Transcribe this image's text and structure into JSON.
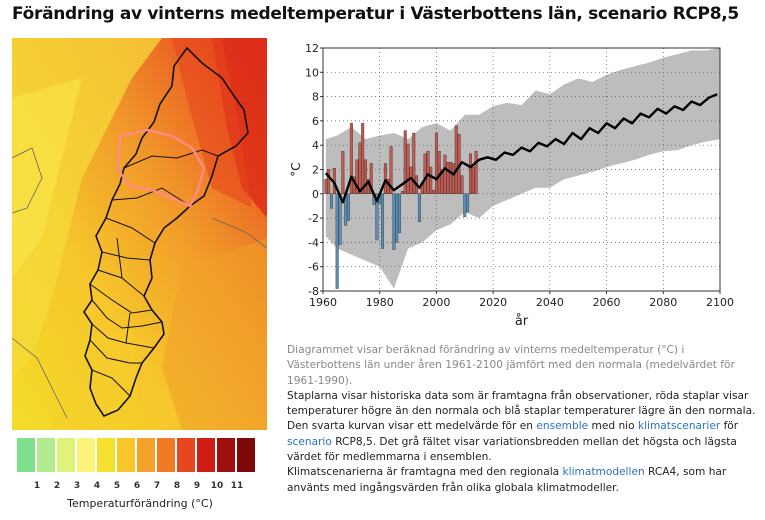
{
  "page": {
    "title": "Förändring av vinterns medeltemperatur i Västerbottens län, scenario RCP8,5"
  },
  "legend": {
    "label": "Temperaturförändring (°C)",
    "ticks": [
      "1",
      "2",
      "3",
      "4",
      "5",
      "6",
      "7",
      "8",
      "9",
      "10",
      "11"
    ],
    "colors": [
      "#7ee08a",
      "#b2eb8f",
      "#dff27a",
      "#fbf37a",
      "#f5e12d",
      "#f9c62a",
      "#f5a12a",
      "#ef7b24",
      "#e6471e",
      "#cf1d14",
      "#9e0f0d"
    ]
  },
  "description": {
    "p1": "Diagrammet visar beräknad förändring av vinterns medeltemperatur (°C) i Västerbottens län under åren 1961-2100 jämfört med den normala (medelvärdet för 1961-1990).",
    "p2": "Staplarna visar historiska data som är framtagna från observationer, röda staplar visar temperaturer högre än den normala och blå staplar temperaturer lägre än den normala.",
    "p3_a": "Den svarta kurvan visar ett medelvärde för en ",
    "p3_link1": "ensemble",
    "p3_b": " med nio ",
    "p3_link2": "klimatscenarier",
    "p3_c": " för ",
    "p3_link3": "scenario",
    "p3_d": " RCP8,5. Det grå fältet visar variationsbredden mellan det högsta och lägsta värdet för medlemmarna i ensemblen.",
    "p4_a": "Klimatscenarierna är framtagna med den regionala ",
    "p4_link": "klimatmodellen",
    "p4_b": " RCA4, som har använts med ingångsvärden från olika globala klimatmodeller."
  },
  "colors": {
    "bar_positive": "#c45a4e",
    "bar_negative": "#5b8fb8",
    "envelope": "#bdbdbd",
    "mean_line": "#000000",
    "link": "#2a72c6",
    "highlight_county": "#ff8a8a"
  },
  "chart_data": {
    "type": "bar",
    "xlabel": "år",
    "ylabel": "°C",
    "xlim": [
      1960,
      2100
    ],
    "ylim": [
      -8,
      12
    ],
    "xticks": [
      1960,
      1980,
      2000,
      2020,
      2040,
      2060,
      2080,
      2100
    ],
    "yticks": [
      -8,
      -6,
      -4,
      -2,
      0,
      2,
      4,
      6,
      8,
      10,
      12
    ],
    "grid": true,
    "series": [
      {
        "kind": "bar",
        "x": [
          1961,
          1962,
          1963,
          1964,
          1965,
          1966,
          1967,
          1968,
          1969,
          1970,
          1971,
          1972,
          1973,
          1974,
          1975,
          1976,
          1977,
          1978,
          1979,
          1980,
          1981,
          1982,
          1983,
          1984,
          1985,
          1986,
          1987,
          1988,
          1989,
          1990,
          1991,
          1992,
          1993,
          1994,
          1995,
          1996,
          1997,
          1998,
          1999,
          2000,
          2001,
          2002,
          2003,
          2004,
          2005,
          2006,
          2007,
          2008,
          2009,
          2010,
          2011,
          2012,
          2013,
          2014
        ],
        "values": [
          1.2,
          2.0,
          -1.2,
          2.1,
          -7.8,
          -4.2,
          3.5,
          -2.6,
          -2.2,
          5.8,
          1.4,
          2.8,
          4.2,
          5.8,
          2.8,
          1.2,
          2.5,
          -0.9,
          -3.8,
          -0.8,
          -4.5,
          2.5,
          1.2,
          3.9,
          -4.6,
          -4.0,
          -3.2,
          0.2,
          5.2,
          4.1,
          2.2,
          5.0,
          1.5,
          -2.3,
          0.9,
          3.3,
          3.5,
          2.2,
          0.3,
          5.0,
          3.5,
          2.0,
          3.2,
          2.6,
          2.6,
          2.5,
          5.6,
          4.9,
          1.5,
          -1.9,
          -1.5,
          3.3,
          2.2,
          3.5
        ]
      },
      {
        "kind": "line",
        "name": "mean",
        "x": [
          1961,
          1964,
          1967,
          1970,
          1973,
          1976,
          1979,
          1982,
          1985,
          1988,
          1991,
          1994,
          1997,
          2000,
          2003,
          2006,
          2009,
          2012,
          2015,
          2018,
          2021,
          2024,
          2027,
          2030,
          2033,
          2036,
          2039,
          2042,
          2045,
          2048,
          2051,
          2054,
          2057,
          2060,
          2063,
          2066,
          2069,
          2072,
          2075,
          2078,
          2081,
          2084,
          2087,
          2090,
          2093,
          2096,
          2099
        ],
        "values": [
          1.7,
          0.9,
          -0.7,
          1.4,
          0.2,
          1.0,
          -0.6,
          1.1,
          0.3,
          0.8,
          1.3,
          0.5,
          1.6,
          1.2,
          2.1,
          1.6,
          2.6,
          2.2,
          2.8,
          3.0,
          2.8,
          3.4,
          3.2,
          3.8,
          3.5,
          4.2,
          3.9,
          4.5,
          4.1,
          5.0,
          4.5,
          5.4,
          5.0,
          5.8,
          5.4,
          6.2,
          5.8,
          6.6,
          6.3,
          7.0,
          6.6,
          7.2,
          6.9,
          7.6,
          7.3,
          7.9,
          8.2
        ]
      },
      {
        "kind": "band",
        "x": [
          1961,
          1965,
          1970,
          1975,
          1980,
          1985,
          1990,
          1995,
          2000,
          2005,
          2010,
          2015,
          2020,
          2025,
          2030,
          2035,
          2040,
          2045,
          2050,
          2055,
          2060,
          2065,
          2070,
          2075,
          2080,
          2085,
          2090,
          2095,
          2100
        ],
        "upper": [
          4.5,
          4.8,
          5.5,
          4.5,
          4.8,
          5.0,
          4.5,
          5.5,
          5.8,
          5.2,
          6.5,
          6.5,
          7.2,
          7.5,
          7.3,
          8.5,
          8.2,
          9.0,
          9.5,
          9.2,
          9.8,
          10.2,
          10.5,
          10.8,
          11.2,
          11.5,
          11.8,
          11.8,
          12.0
        ],
        "lower": [
          -3.5,
          -4.5,
          -5.0,
          -5.5,
          -6.0,
          -7.8,
          -4.5,
          -4.0,
          -3.0,
          -2.5,
          -1.5,
          -2.0,
          -1.0,
          -0.5,
          0.0,
          0.5,
          0.5,
          1.2,
          1.5,
          1.8,
          2.2,
          2.5,
          2.8,
          3.2,
          3.5,
          3.6,
          4.0,
          4.3,
          4.5
        ]
      }
    ]
  }
}
